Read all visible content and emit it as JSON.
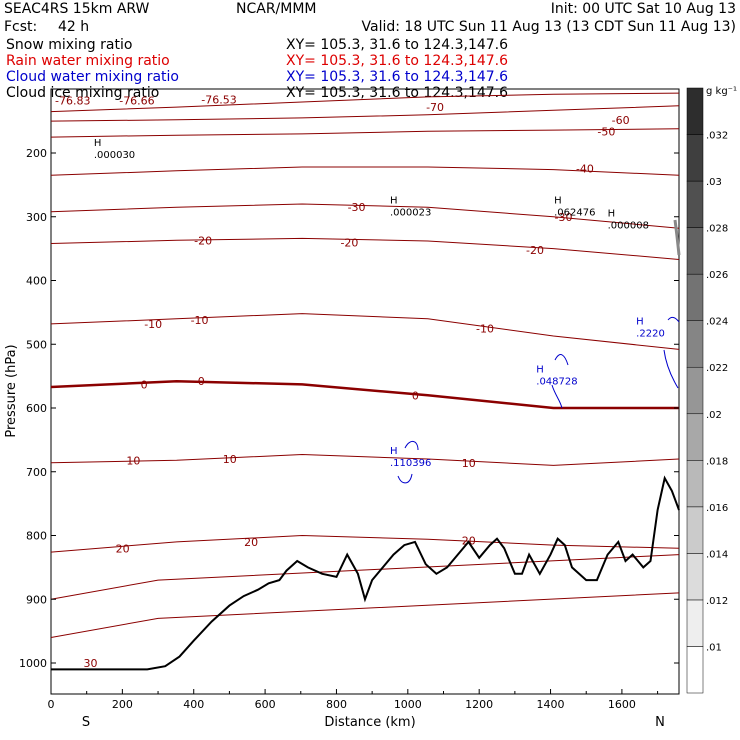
{
  "header": {
    "model": "SEAC4RS 15km ARW",
    "org": "NCAR/MMM",
    "init": "Init: 00 UTC Sat 10 Aug 13",
    "fcst_label": "Fcst:",
    "fcst_value": "42 h",
    "valid": "Valid: 18 UTC Sun 11 Aug 13 (13 CDT Sun 11 Aug 13)",
    "fields": [
      {
        "name": "Snow mixing ratio",
        "xy": "XY= 105.3, 31.6 to 124.3,147.6",
        "color": "#000000"
      },
      {
        "name": "Rain water mixing ratio",
        "xy": "XY= 105.3, 31.6 to 124.3,147.6",
        "color": "#dd0000"
      },
      {
        "name": "Cloud water mixing ratio",
        "xy": "XY= 105.3, 31.6 to 124.3,147.6",
        "color": "#0000cc"
      },
      {
        "name": "Cloud ice mixing ratio",
        "xy": "XY= 105.3, 31.6 to 124.3,147.6",
        "color": "#000000"
      }
    ]
  },
  "chart_data": {
    "type": "cross-section",
    "xlabel": "Distance (km)",
    "ylabel": "Pressure (hPa)",
    "xlim": [
      0,
      1760
    ],
    "ylim": [
      1050,
      100
    ],
    "x_ticks": [
      0,
      200,
      400,
      600,
      800,
      1000,
      1200,
      1400,
      1600
    ],
    "y_ticks": [
      200,
      300,
      400,
      500,
      600,
      700,
      800,
      900,
      1000
    ],
    "x_end_labels": [
      "S",
      "N"
    ],
    "colorbar": {
      "unit": "g kg⁻¹",
      "levels": [
        ".01",
        ".012",
        ".014",
        ".016",
        ".018",
        ".02",
        ".022",
        ".024",
        ".026",
        ".028",
        ".03",
        ".032"
      ]
    },
    "temperature_contours": [
      {
        "label": "-70",
        "p": [
          135,
          128,
          120,
          112,
          108,
          106
        ]
      },
      {
        "label": "-60",
        "p": [
          150,
          148,
          145,
          140,
          133,
          126
        ]
      },
      {
        "label": "-50",
        "p": [
          175,
          172,
          170,
          166,
          164,
          162
        ]
      },
      {
        "label": "-40",
        "p": [
          235,
          228,
          222,
          222,
          226,
          235
        ]
      },
      {
        "label": "-30",
        "p": [
          292,
          285,
          280,
          285,
          300,
          318
        ]
      },
      {
        "label": "-20",
        "p": [
          342,
          337,
          334,
          338,
          350,
          367
        ]
      },
      {
        "label": "-10",
        "p": [
          468,
          460,
          452,
          460,
          487,
          508
        ]
      },
      {
        "label": "0",
        "p": [
          567,
          558,
          563,
          580,
          600,
          600
        ]
      },
      {
        "label": "10",
        "p": [
          686,
          682,
          673,
          680,
          690,
          680
        ]
      },
      {
        "label": "20",
        "p": [
          826,
          810,
          800,
          806,
          815,
          820
        ]
      }
    ],
    "contour_labels": [
      {
        "text": "-76.83",
        "x": 0,
        "p": 118
      },
      {
        "text": "-76.66",
        "x": 180,
        "p": 118
      },
      {
        "text": "-76.53",
        "x": 410,
        "p": 116
      },
      {
        "text": "-70",
        "x": 1040,
        "p": 128
      },
      {
        "text": "-60",
        "x": 1560,
        "p": 148
      },
      {
        "text": "-50",
        "x": 1520,
        "p": 166
      },
      {
        "text": "-40",
        "x": 1460,
        "p": 224
      },
      {
        "text": "-30",
        "x": 820,
        "p": 285
      },
      {
        "text": "-30",
        "x": 1400,
        "p": 300
      },
      {
        "text": "-20",
        "x": 390,
        "p": 337
      },
      {
        "text": "-20",
        "x": 800,
        "p": 340
      },
      {
        "text": "-20",
        "x": 1320,
        "p": 352
      },
      {
        "text": "-10",
        "x": 250,
        "p": 468
      },
      {
        "text": "-10",
        "x": 380,
        "p": 462
      },
      {
        "text": "-10",
        "x": 1180,
        "p": 475
      },
      {
        "text": "0",
        "x": 240,
        "p": 563
      },
      {
        "text": "0",
        "x": 400,
        "p": 558
      },
      {
        "text": "0",
        "x": 1000,
        "p": 580
      },
      {
        "text": "10",
        "x": 200,
        "p": 682
      },
      {
        "text": "10",
        "x": 470,
        "p": 680
      },
      {
        "text": "10",
        "x": 1140,
        "p": 686
      },
      {
        "text": "20",
        "x": 170,
        "p": 820
      },
      {
        "text": "20",
        "x": 530,
        "p": 810
      },
      {
        "text": "20",
        "x": 1140,
        "p": 808
      },
      {
        "text": "30",
        "x": 80,
        "p": 1000
      }
    ],
    "extrema": [
      {
        "text": ".000030",
        "x": 120,
        "p": 205,
        "color": "#000000"
      },
      {
        "text": ".000023",
        "x": 950,
        "p": 295,
        "color": "#000000"
      },
      {
        "text": ".062476",
        "x": 1410,
        "p": 295,
        "color": "#000000"
      },
      {
        "text": ".000008",
        "x": 1560,
        "p": 315,
        "color": "#000000"
      },
      {
        "text": ".048728",
        "x": 1360,
        "p": 560,
        "color": "#0000cc"
      },
      {
        "text": ".110396",
        "x": 950,
        "p": 688,
        "color": "#0000cc"
      },
      {
        "text": ".2220",
        "x": 1640,
        "p": 485,
        "color": "#0000cc"
      }
    ],
    "terrain": {
      "x": [
        0,
        100,
        200,
        270,
        320,
        360,
        400,
        450,
        500,
        540,
        580,
        610,
        640,
        660,
        690,
        720,
        760,
        800,
        830,
        860,
        880,
        900,
        930,
        960,
        990,
        1020,
        1050,
        1080,
        1110,
        1140,
        1170,
        1200,
        1230,
        1250,
        1270,
        1300,
        1320,
        1340,
        1370,
        1400,
        1420,
        1440,
        1460,
        1480,
        1500,
        1530,
        1560,
        1590,
        1610,
        1630,
        1660,
        1680,
        1700,
        1720,
        1740,
        1760
      ],
      "p": [
        1010,
        1010,
        1010,
        1010,
        1005,
        990,
        965,
        935,
        910,
        895,
        885,
        875,
        870,
        855,
        840,
        850,
        860,
        865,
        830,
        860,
        900,
        870,
        850,
        830,
        815,
        810,
        845,
        860,
        850,
        830,
        810,
        835,
        815,
        805,
        820,
        860,
        860,
        830,
        860,
        830,
        805,
        815,
        850,
        860,
        870,
        870,
        830,
        810,
        840,
        830,
        850,
        840,
        760,
        710,
        730,
        760
      ]
    }
  }
}
